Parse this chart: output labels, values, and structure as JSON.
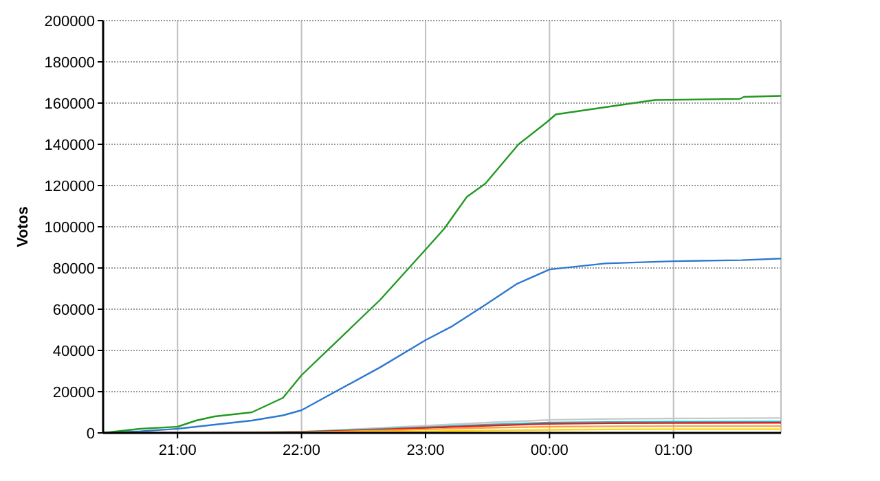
{
  "chart_data": {
    "type": "line",
    "ylabel": "Votos",
    "xlim": [
      "2000-01-01T20:24",
      "2000-01-02T01:52"
    ],
    "xticks": [
      {
        "value": "2000-01-01T21:00",
        "label": "21:00"
      },
      {
        "value": "2000-01-01T22:00",
        "label": "22:00"
      },
      {
        "value": "2000-01-01T23:00",
        "label": "23:00"
      },
      {
        "value": "2000-01-02T00:00",
        "label": "00:00"
      },
      {
        "value": "2000-01-02T01:00",
        "label": "01:00"
      }
    ],
    "ylim": [
      0,
      200000
    ],
    "yticks": [
      0,
      20000,
      40000,
      60000,
      80000,
      100000,
      120000,
      140000,
      160000,
      180000,
      200000
    ],
    "grid": true,
    "marker": "none",
    "line_style": "solid",
    "series": [
      {
        "color": "#c8c8c8",
        "x": [
          "2000-01-01T20:24",
          "2000-01-01T22:00",
          "2000-01-01T22:30",
          "2000-01-01T23:00",
          "2000-01-01T23:30",
          "2000-01-02T00:00",
          "2000-01-02T00:30",
          "2000-01-02T01:00",
          "2000-01-02T01:52"
        ],
        "values": [
          0,
          600,
          2000,
          3500,
          5000,
          6300,
          6800,
          7000,
          7200
        ]
      },
      {
        "color": "#20b8c8",
        "x": [
          "2000-01-01T20:24",
          "2000-01-01T21:30",
          "2000-01-01T22:00",
          "2000-01-01T22:30",
          "2000-01-01T23:00",
          "2000-01-01T23:30",
          "2000-01-02T00:00",
          "2000-01-02T00:30",
          "2000-01-02T01:00",
          "2000-01-02T01:52"
        ],
        "values": [
          0,
          100,
          500,
          1600,
          2800,
          4000,
          5000,
          5300,
          5400,
          5500
        ]
      },
      {
        "color": "#e02020",
        "x": [
          "2000-01-01T20:24",
          "2000-01-01T21:30",
          "2000-01-01T22:00",
          "2000-01-01T22:30",
          "2000-01-01T23:00",
          "2000-01-01T23:30",
          "2000-01-02T00:00",
          "2000-01-02T00:30",
          "2000-01-02T01:00",
          "2000-01-02T01:52"
        ],
        "values": [
          0,
          100,
          400,
          1300,
          2400,
          3500,
          4400,
          4700,
          4800,
          4900
        ]
      },
      {
        "color": "#ffa040",
        "x": [
          "2000-01-01T20:24",
          "2000-01-01T22:00",
          "2000-01-01T22:30",
          "2000-01-01T23:00",
          "2000-01-01T23:30",
          "2000-01-02T00:00",
          "2000-01-02T00:30",
          "2000-01-02T01:00",
          "2000-01-02T01:52"
        ],
        "values": [
          0,
          300,
          900,
          1700,
          2500,
          3000,
          3200,
          3300,
          3300
        ]
      },
      {
        "color": "#ffd800",
        "x": [
          "2000-01-01T22:00",
          "2000-01-01T22:30",
          "2000-01-01T23:00",
          "2000-01-01T23:30",
          "2000-01-02T00:00",
          "2000-01-02T00:30",
          "2000-01-02T01:00",
          "2000-01-02T01:52"
        ],
        "values": [
          100,
          400,
          800,
          1200,
          1500,
          1700,
          1800,
          1800
        ]
      },
      {
        "color": "#2e78d0",
        "x": [
          "2000-01-01T20:24",
          "2000-01-01T20:42",
          "2000-01-01T21:00",
          "2000-01-01T21:18",
          "2000-01-01T21:36",
          "2000-01-01T21:51",
          "2000-01-01T22:00",
          "2000-01-01T22:38",
          "2000-01-01T23:00",
          "2000-01-01T23:13",
          "2000-01-01T23:29",
          "2000-01-01T23:44",
          "2000-01-02T00:00",
          "2000-01-02T00:27",
          "2000-01-02T01:00",
          "2000-01-02T01:33",
          "2000-01-02T01:52"
        ],
        "values": [
          0,
          800,
          2000,
          4000,
          6000,
          8500,
          11000,
          31800,
          45000,
          51800,
          62200,
          72200,
          79300,
          82200,
          83300,
          83800,
          84600
        ]
      },
      {
        "color": "#229922",
        "x": [
          "2000-01-01T20:24",
          "2000-01-01T20:42",
          "2000-01-01T21:00",
          "2000-01-01T21:09",
          "2000-01-01T21:18",
          "2000-01-01T21:36",
          "2000-01-01T21:51",
          "2000-01-01T22:00",
          "2000-01-01T22:38",
          "2000-01-01T23:00",
          "2000-01-01T23:09",
          "2000-01-01T23:20",
          "2000-01-01T23:29",
          "2000-01-01T23:45",
          "2000-01-01T23:59",
          "2000-01-02T00:03",
          "2000-01-02T00:27",
          "2000-01-02T00:51",
          "2000-01-02T01:32",
          "2000-01-02T01:34",
          "2000-01-02T01:52"
        ],
        "values": [
          0,
          2000,
          3000,
          6000,
          8000,
          10000,
          17000,
          28000,
          64500,
          88900,
          99000,
          114500,
          121000,
          140000,
          151000,
          154500,
          158000,
          161500,
          162000,
          163000,
          163500
        ]
      }
    ]
  }
}
